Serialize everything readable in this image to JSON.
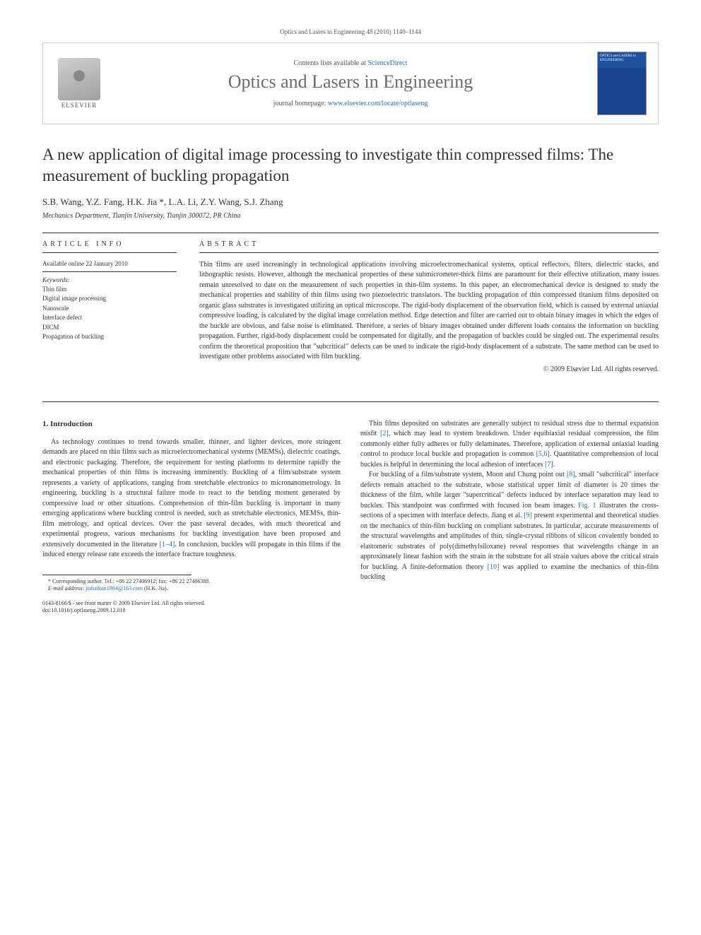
{
  "header": {
    "citation": "Optics and Lasers in Engineering 48 (2010) 1140–1144",
    "contents_prefix": "Contents lists available at ",
    "contents_link": "ScienceDirect",
    "journal_name": "Optics and Lasers in Engineering",
    "homepage_prefix": "journal homepage: ",
    "homepage_url": "www.elsevier.com/locate/optlaseng",
    "publisher": "ELSEVIER",
    "cover_text": "OPTICS and LASERS in ENGINEERING"
  },
  "article": {
    "title": "A new application of digital image processing to investigate thin compressed films: The measurement of buckling propagation",
    "authors": "S.B. Wang, Y.Z. Fang, H.K. Jia *, L.A. Li, Z.Y. Wang, S.J. Zhang",
    "affiliation": "Mechanics Department, Tianjin University, Tianjin 300072, PR China"
  },
  "info": {
    "heading": "ARTICLE INFO",
    "available": "Available online 22 January 2010",
    "keywords_label": "Keywords:",
    "keywords": [
      "Thin film",
      "Digital image processing",
      "Nanoscale",
      "Interface defect",
      "DICM",
      "Propagation of buckling"
    ]
  },
  "abstract": {
    "heading": "ABSTRACT",
    "text": "Thin films are used increasingly in technological applications involving microelectromechanical systems, optical reflectors, filters, dielectric stacks, and lithographic resists. However, although the mechanical properties of these submicrometer-thick films are paramount for their effective utilization, many issues remain unresolved to date on the measurement of such properties in thin-film systems. In this paper, an electromechanical device is designed to study the mechanical properties and stability of thin films using two piezoelectric translators. The buckling propagation of thin compressed titanium films deposited on organic glass substrates is investigated utilizing an optical microscope. The rigid-body displacement of the observation field, which is caused by external uniaxial compressive loading, is calculated by the digital image correlation method. Edge detection and filter are carried out to obtain binary images in which the edges of the buckle are obvious, and false noise is eliminated. Therefore, a series of binary images obtained under different loads contains the information on buckling propagation. Further, rigid-body displacement could be compensated for digitally, and the propagation of buckles could be singled out. The experimental results confirm the theoretical proposition that \"subcritical\" defects can be used to indicate the rigid-body displacement of a substrate. The same method can be used to investigate other problems associated with film buckling.",
    "copyright": "© 2009 Elsevier Ltd. All rights reserved."
  },
  "body": {
    "section_number": "1.",
    "section_title": "Introduction",
    "col1_para1_a": "As technology continues to trend towards smaller, thinner, and lighter devices, more stringent demands are placed on thin films such as microelectromechanical systems (MEMSs), dielectric coatings, and electronic packaging. Therefore, the requirement for testing platforms to determine rapidly the mechanical properties of thin films is increasing imminently. Buckling of a film/substrate system represents a variety of applications, ranging from stretchable electronics to micronanometrology. In engineering, buckling is a structural failure mode to react to the bending moment generated by compressive load or other situations. Comprehension of thin-film buckling is important in many emerging applications where buckling control is needed, such as stretchable electronics, MEMSs, thin-film metrology, and optical devices. Over the past several decades, with much theoretical and experimental progress, various mechanisms for buckling investigation have been proposed and extensively documented in the literature ",
    "col1_ref1": "[1–4]",
    "col1_para1_b": ". In conclusion, buckles will propagate in thin films if the induced energy release rate exceeds the interface fracture toughness.",
    "col2_para1_a": "Thin films deposited on substrates are generally subject to residual stress due to thermal expansion misfit ",
    "col2_ref2": "[2]",
    "col2_para1_b": ", which may lead to system breakdown. Under equibiaxial residual compression, the film commonly either fully adheres or fully delaminates. Therefore, application of external uniaxial loading control to produce local buckle and propagation is common ",
    "col2_ref56": "[5,6]",
    "col2_para1_c": ". Quantitative comprehension of local buckles is helpful in determining the local adhesion of interfaces ",
    "col2_ref7": "[7]",
    "col2_para1_d": ".",
    "col2_para2_a": "For buckling of a film/substrate system, Moon and Chung point out ",
    "col2_ref8": "[8]",
    "col2_para2_b": ", small \"subcritical\" interface defects remain attached to the substrate, whose statistical upper limit of diameter is 20 times the thickness of the film, while larger \"supercritical\" defects induced by interface separation may lead to buckles. This standpoint was confirmed with focused ion beam images. ",
    "col2_fig1": "Fig. 1",
    "col2_para2_c": " illustrates the cross-sections of a specimen with interface defects. Jiang et al. ",
    "col2_ref9": "[9]",
    "col2_para2_d": " present experimental and theoretical studies on the mechanics of thin-film buckling on compliant substrates. In particular, accurate measurements of the structural wavelengths and amplitudes of thin, single-crystal ribbons of silicon covalently bonded to elastomeric substrates of poly(dimethylsiloxane) reveal responses that wavelengths change in an approximately linear fashion with the strain in the substrate for all strain values above the critical strain for buckling. A finite-deformation theory ",
    "col2_ref10": "[10]",
    "col2_para2_e": " was applied to examine the mechanics of thin-film buckling"
  },
  "footnote": {
    "corresponding": "* Corresponding author. Tel.: +86 22 27406912; fax: +86 22 27406388.",
    "email_label": "E-mail address: ",
    "email": "jiahaikun1984@163.com",
    "email_suffix": " (H.K. Jia)."
  },
  "doi": {
    "line1": "0143-8166/$ - see front matter © 2009 Elsevier Ltd. All rights reserved.",
    "line2": "doi:10.1016/j.optlaseng.2009.12.018"
  },
  "colors": {
    "link": "#2a6db5",
    "text": "#333333",
    "border": "#333333"
  }
}
